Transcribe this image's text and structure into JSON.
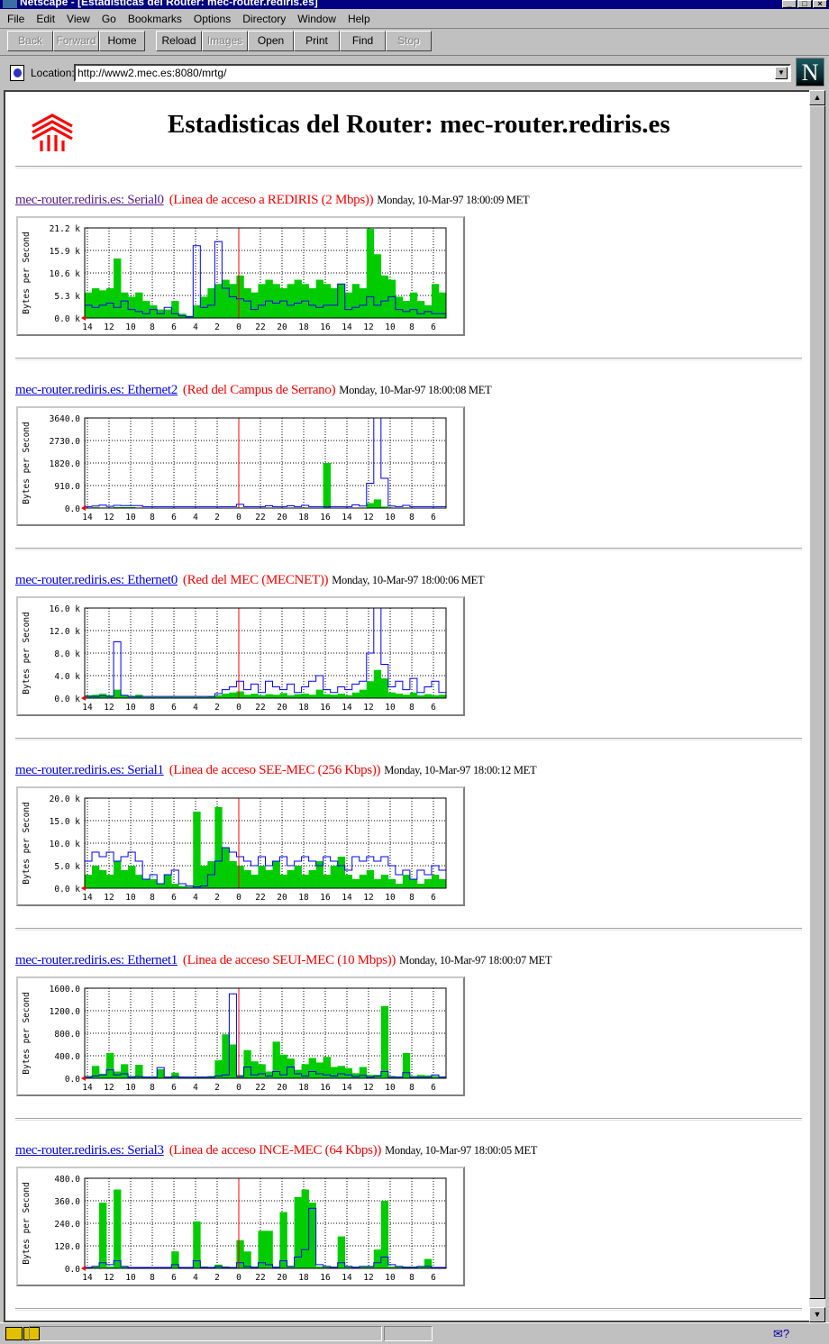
{
  "window": {
    "title": "Netscape - [Estadisticas del Router: mec-router.rediris.es]"
  },
  "menu": [
    "File",
    "Edit",
    "View",
    "Go",
    "Bookmarks",
    "Options",
    "Directory",
    "Window",
    "Help"
  ],
  "toolbar": {
    "back": "Back",
    "forward": "Forward",
    "home": "Home",
    "reload": "Reload",
    "images": "Images",
    "open": "Open",
    "print": "Print",
    "find": "Find",
    "stop": "Stop"
  },
  "location": {
    "label": "Location:",
    "url": "http://www2.mec.es:8080/mrtg/"
  },
  "page": {
    "title": "Estadisticas del Router: mec-router.rediris.es"
  },
  "colors": {
    "incoming": "#00cc00",
    "outgoing": "#0000ff",
    "now_line": "#ff0000",
    "link": "#0000ee",
    "visited": "#551a8b",
    "desc": "#ff0000"
  },
  "sections": [
    {
      "link": "mec-router.rediris.es: Serial0",
      "visited": true,
      "desc": "(Linea de acceso a REDIRIS (2 Mbps))",
      "date": "Monday, 10-Mar-97 18:00:09 MET"
    },
    {
      "link": "mec-router.rediris.es: Ethernet2",
      "visited": false,
      "desc": "(Red del Campus de Serrano)",
      "date": "Monday, 10-Mar-97 18:00:08 MET"
    },
    {
      "link": "mec-router.rediris.es: Ethernet0",
      "visited": false,
      "desc": "(Red del MEC (MECNET))",
      "date": "Monday, 10-Mar-97 18:00:06 MET"
    },
    {
      "link": "mec-router.rediris.es: Serial1",
      "visited": false,
      "desc": "(Linea de acceso SEE-MEC (256 Kbps))",
      "date": "Monday, 10-Mar-97 18:00:12 MET"
    },
    {
      "link": "mec-router.rediris.es: Ethernet1",
      "visited": false,
      "desc": "(Linea de acceso SEUI-MEC (10 Mbps))",
      "date": "Monday, 10-Mar-97 18:00:07 MET"
    },
    {
      "link": "mec-router.rediris.es: Serial3",
      "visited": false,
      "desc": "(Linea de acceso INCE-MEC (64 Kbps))",
      "date": "Monday, 10-Mar-97 18:00:05 MET"
    }
  ],
  "chart_data": [
    {
      "type": "area",
      "ylabel": "Bytes per Second",
      "xticks": [
        "14",
        "12",
        "10",
        "8",
        "6",
        "4",
        "2",
        "0",
        "22",
        "20",
        "18",
        "16",
        "14",
        "12",
        "10",
        "8",
        "6"
      ],
      "yticks": [
        "0.0 k",
        "5.3 k",
        "10.6 k",
        "15.9 k",
        "21.2 k"
      ],
      "ylim": [
        0,
        21.2
      ],
      "unit": "k",
      "grid": true,
      "series": [
        {
          "type": "bar",
          "color": "#00cc00",
          "values": [
            6,
            7,
            6.5,
            7,
            14,
            6,
            5,
            6,
            4,
            3,
            2,
            2,
            4,
            1,
            0.5,
            3,
            5,
            7,
            8,
            9,
            8,
            10,
            7,
            6,
            8,
            9,
            8,
            7,
            8,
            9,
            8,
            7,
            9,
            8,
            7,
            8,
            6,
            8,
            7,
            21,
            15,
            10,
            9,
            5,
            4,
            6,
            4,
            3,
            8,
            6
          ]
        },
        {
          "type": "line",
          "color": "#0000ff",
          "values": [
            3,
            2.5,
            3,
            3.5,
            2.5,
            4,
            2,
            1.5,
            1,
            2,
            1,
            2.5,
            1,
            0.5,
            0.3,
            17,
            2.5,
            3,
            18,
            7,
            5,
            4.5,
            4,
            2,
            3,
            4,
            3.5,
            4,
            3,
            3.5,
            4,
            3,
            2.5,
            3,
            3,
            8,
            2,
            2.5,
            3,
            5,
            3,
            4,
            5,
            2,
            1.5,
            2,
            1,
            1.5,
            1,
            1
          ]
        }
      ]
    },
    {
      "type": "area",
      "ylabel": "Bytes per Second",
      "xticks": [
        "14",
        "12",
        "10",
        "8",
        "6",
        "4",
        "2",
        "0",
        "22",
        "20",
        "18",
        "16",
        "14",
        "12",
        "10",
        "8",
        "6"
      ],
      "yticks": [
        "0.0",
        "910.0",
        "1820.0",
        "2730.0",
        "3640.0"
      ],
      "ylim": [
        0,
        3640
      ],
      "grid": true,
      "series": [
        {
          "type": "bar",
          "color": "#00cc00",
          "values": [
            20,
            30,
            20,
            20,
            40,
            40,
            40,
            20,
            10,
            10,
            10,
            10,
            10,
            10,
            10,
            10,
            10,
            10,
            10,
            10,
            10,
            10,
            10,
            10,
            10,
            10,
            10,
            10,
            10,
            10,
            10,
            10,
            10,
            1820,
            10,
            10,
            20,
            10,
            20,
            200,
            350,
            60,
            20,
            10,
            10,
            10,
            10,
            10,
            10,
            10
          ]
        },
        {
          "type": "line",
          "color": "#0000ff",
          "values": [
            60,
            80,
            120,
            70,
            110,
            100,
            100,
            100,
            60,
            60,
            60,
            60,
            60,
            60,
            60,
            60,
            60,
            60,
            60,
            60,
            60,
            150,
            60,
            60,
            60,
            90,
            60,
            60,
            90,
            60,
            110,
            60,
            60,
            60,
            60,
            60,
            60,
            130,
            80,
            1000,
            3640,
            1200,
            80,
            60,
            110,
            60,
            60,
            60,
            60,
            60
          ]
        }
      ]
    },
    {
      "type": "area",
      "ylabel": "Bytes per Second",
      "xticks": [
        "14",
        "12",
        "10",
        "8",
        "6",
        "4",
        "2",
        "0",
        "22",
        "20",
        "18",
        "16",
        "14",
        "12",
        "10",
        "8",
        "6"
      ],
      "yticks": [
        "0.0 k",
        "4.0 k",
        "8.0 k",
        "12.0 k",
        "16.0 k"
      ],
      "ylim": [
        0,
        16
      ],
      "unit": "k",
      "grid": true,
      "series": [
        {
          "type": "bar",
          "color": "#00cc00",
          "values": [
            0.5,
            0.6,
            0.8,
            0.5,
            1.5,
            0.5,
            0.3,
            0.6,
            0.2,
            0.2,
            0.2,
            0.2,
            0.2,
            0.2,
            0.2,
            0.2,
            0.2,
            0.3,
            0.5,
            0.8,
            1,
            1.2,
            0.6,
            0.8,
            0.5,
            0.7,
            0.6,
            0.9,
            0.5,
            0.7,
            0.8,
            0.6,
            1.5,
            0.7,
            0.6,
            0.8,
            0.5,
            1,
            1.5,
            3,
            5,
            3.5,
            1,
            0.8,
            0.6,
            1,
            0.5,
            0.7,
            0.5,
            0.6
          ]
        },
        {
          "type": "line",
          "color": "#0000ff",
          "values": [
            0.3,
            0.3,
            0.4,
            0.3,
            10,
            0.5,
            0.3,
            0.3,
            0.3,
            0.3,
            0.3,
            0.3,
            0.3,
            0.3,
            0.3,
            0.3,
            0.3,
            0.3,
            0.8,
            1.5,
            2,
            3,
            1.5,
            2.5,
            1,
            3,
            2,
            1.5,
            2.5,
            1,
            2,
            3,
            4,
            1.5,
            1,
            2,
            1.5,
            2.5,
            3,
            8,
            16,
            6,
            2,
            3,
            1.5,
            3.5,
            1,
            2,
            3,
            1
          ]
        }
      ]
    },
    {
      "type": "area",
      "ylabel": "Bytes per Second",
      "xticks": [
        "14",
        "12",
        "10",
        "8",
        "6",
        "4",
        "2",
        "0",
        "22",
        "20",
        "18",
        "16",
        "14",
        "12",
        "10",
        "8",
        "6"
      ],
      "yticks": [
        "0.0 k",
        "5.0 k",
        "10.0 k",
        "15.0 k",
        "20.0 k"
      ],
      "ylim": [
        0,
        20
      ],
      "unit": "k",
      "grid": true,
      "series": [
        {
          "type": "bar",
          "color": "#00cc00",
          "values": [
            3,
            5,
            4,
            3,
            6,
            4,
            5,
            3,
            2,
            2,
            1,
            3,
            1,
            0.5,
            0.3,
            17,
            5,
            6,
            18,
            9,
            6,
            5,
            4,
            3,
            5,
            4,
            6,
            3,
            4,
            5,
            3,
            4,
            6,
            3,
            5,
            7,
            3,
            2,
            3,
            4,
            2,
            3,
            2,
            1,
            3,
            2,
            1,
            2,
            3,
            2
          ]
        },
        {
          "type": "line",
          "color": "#0000ff",
          "values": [
            6,
            8,
            7,
            8,
            6,
            7,
            8,
            6,
            2,
            3,
            1,
            3,
            4,
            1,
            0.5,
            0.3,
            0.5,
            3,
            6,
            9,
            8,
            7,
            6,
            5,
            7,
            5,
            6,
            7,
            5,
            6,
            7,
            6,
            5,
            7,
            6,
            5,
            4,
            7,
            6,
            7,
            6,
            7,
            5,
            3,
            4,
            2,
            4,
            3,
            5,
            4
          ]
        }
      ]
    },
    {
      "type": "area",
      "ylabel": "Bytes per Second",
      "xticks": [
        "14",
        "12",
        "10",
        "8",
        "6",
        "4",
        "2",
        "0",
        "22",
        "20",
        "18",
        "16",
        "14",
        "12",
        "10",
        "8",
        "6"
      ],
      "yticks": [
        "0.0",
        "400.0",
        "800.0",
        "1200.0",
        "1600.0"
      ],
      "ylim": [
        0,
        1600
      ],
      "grid": true,
      "series": [
        {
          "type": "bar",
          "color": "#00cc00",
          "values": [
            40,
            220,
            80,
            450,
            120,
            250,
            40,
            240,
            30,
            30,
            160,
            30,
            100,
            30,
            20,
            30,
            30,
            40,
            320,
            780,
            600,
            60,
            500,
            300,
            250,
            120,
            650,
            420,
            350,
            150,
            250,
            360,
            280,
            380,
            200,
            220,
            180,
            90,
            200,
            60,
            60,
            1280,
            40,
            30,
            450,
            40,
            60,
            50,
            40,
            30
          ]
        },
        {
          "type": "line",
          "color": "#0000ff",
          "values": [
            20,
            40,
            60,
            150,
            60,
            80,
            20,
            30,
            20,
            20,
            190,
            20,
            30,
            20,
            20,
            20,
            20,
            20,
            40,
            60,
            1500,
            30,
            200,
            60,
            80,
            40,
            120,
            60,
            200,
            80,
            40,
            120,
            80,
            60,
            40,
            80,
            60,
            30,
            50,
            20,
            40,
            120,
            20,
            20,
            100,
            20,
            20,
            20,
            60,
            20
          ]
        }
      ]
    },
    {
      "type": "area",
      "ylabel": "Bytes per Second",
      "xticks": [
        "14",
        "12",
        "10",
        "8",
        "6",
        "4",
        "2",
        "0",
        "22",
        "20",
        "18",
        "16",
        "14",
        "12",
        "10",
        "8",
        "6"
      ],
      "yticks": [
        "0.0",
        "120.0",
        "240.0",
        "360.0",
        "480.0"
      ],
      "ylim": [
        0,
        480
      ],
      "grid": true,
      "series": [
        {
          "type": "bar",
          "color": "#00cc00",
          "values": [
            5,
            10,
            350,
            10,
            420,
            10,
            5,
            5,
            5,
            5,
            5,
            5,
            90,
            5,
            5,
            250,
            10,
            5,
            20,
            10,
            5,
            150,
            90,
            10,
            200,
            200,
            10,
            300,
            10,
            380,
            420,
            350,
            10,
            10,
            10,
            170,
            10,
            10,
            10,
            10,
            100,
            360,
            10,
            10,
            10,
            10,
            10,
            50,
            5,
            5
          ]
        },
        {
          "type": "line",
          "color": "#0000ff",
          "values": [
            5,
            10,
            30,
            20,
            40,
            10,
            5,
            5,
            5,
            5,
            5,
            5,
            20,
            5,
            5,
            40,
            5,
            5,
            10,
            5,
            5,
            30,
            10,
            5,
            30,
            20,
            5,
            40,
            10,
            60,
            100,
            320,
            20,
            10,
            5,
            30,
            10,
            5,
            10,
            10,
            30,
            60,
            20,
            10,
            5,
            5,
            10,
            10,
            5,
            5
          ]
        }
      ]
    }
  ]
}
